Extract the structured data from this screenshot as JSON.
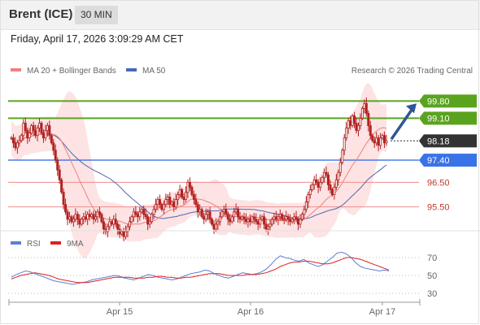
{
  "header": {
    "title": "Brent (ICE)",
    "timeframe": "30 MIN"
  },
  "timestamp": "Friday, April 17, 2026 3:09:29 AM CET",
  "credit": "Research © 2026 Trading Central",
  "colors": {
    "bollinger_fill": "#fde0e0",
    "ma20": "#f08080",
    "ma50": "#4a68b5",
    "resistance": "#5aa31f",
    "support": "#f08c8c",
    "pivot": "#3a72e8",
    "last_price": "#333333",
    "candle": "#b22222",
    "rsi": "#5b7fd6",
    "rsi_ma": "#dd2222",
    "arrow": "#2e5596"
  },
  "chart_data": [
    {
      "type": "candlestick",
      "title": "",
      "legend": [
        {
          "key": "ma20",
          "label": "MA 20 + Bollinger Bands"
        },
        {
          "key": "ma50",
          "label": "MA 50"
        }
      ],
      "legend_placement": "top-left",
      "x_ticks": [
        "Apr 15",
        "Apr 16",
        "Apr 17"
      ],
      "ylim": [
        94.5,
        100.8
      ],
      "price_levels": [
        {
          "label": "99.80",
          "value": 99.8,
          "kind": "resistance"
        },
        {
          "label": "99.10",
          "value": 99.1,
          "kind": "resistance"
        },
        {
          "label": "98.18",
          "value": 98.18,
          "kind": "last_price"
        },
        {
          "label": "97.40",
          "value": 97.4,
          "kind": "pivot"
        },
        {
          "label": "96.50",
          "value": 96.5,
          "kind": "support"
        },
        {
          "label": "95.50",
          "value": 95.5,
          "kind": "support"
        }
      ],
      "closes": [
        98.3,
        98.1,
        97.9,
        98.1,
        98.2,
        98.4,
        98.9,
        98.6,
        98.3,
        98.5,
        98.8,
        98.6,
        98.4,
        98.7,
        98.9,
        98.5,
        98.3,
        98.6,
        98.8,
        98.4,
        98.1,
        97.8,
        97.4,
        97.0,
        96.6,
        96.1,
        95.6,
        95.3,
        95.0,
        95.1,
        94.9,
        95.0,
        95.2,
        95.0,
        94.8,
        95.0,
        95.1,
        95.0,
        95.2,
        95.1,
        95.2,
        95.0,
        95.1,
        95.3,
        95.2,
        94.9,
        94.6,
        94.5,
        94.7,
        94.9,
        94.8,
        95.0,
        94.8,
        94.6,
        94.4,
        94.5,
        94.3,
        94.5,
        94.7,
        94.9,
        95.1,
        95.3,
        95.2,
        95.1,
        95.3,
        95.4,
        95.2,
        95.1,
        94.8,
        94.9,
        95.2,
        95.4,
        95.6,
        95.8,
        95.6,
        95.4,
        95.6,
        95.8,
        95.9,
        95.6,
        95.7,
        95.5,
        95.8,
        96.0,
        96.2,
        95.9,
        95.8,
        96.1,
        96.5,
        96.3,
        96.0,
        95.8,
        95.6,
        95.3,
        95.4,
        95.1,
        95.0,
        95.2,
        95.3,
        95.0,
        94.8,
        94.6,
        94.8,
        94.9,
        95.1,
        95.3,
        95.4,
        95.2,
        95.0,
        94.9,
        95.1,
        95.3,
        95.4,
        95.1,
        95.0,
        95.1,
        95.0,
        94.9,
        95.0,
        94.9,
        95.1,
        95.0,
        94.9,
        94.8,
        95.0,
        95.1,
        94.8,
        94.6,
        94.7,
        94.8,
        95.0,
        95.1,
        95.0,
        95.1,
        95.2,
        95.0,
        95.0,
        95.1,
        95.0,
        94.9,
        95.0,
        95.1,
        95.0,
        94.8,
        95.0,
        95.2,
        95.4,
        95.7,
        96.0,
        96.2,
        96.4,
        96.6,
        96.5,
        96.3,
        96.5,
        96.7,
        96.9,
        96.8,
        96.4,
        96.2,
        96.0,
        96.3,
        96.6,
        96.9,
        97.3,
        97.8,
        98.3,
        98.7,
        99.0,
        98.8,
        99.2,
        98.9,
        98.6,
        98.8,
        99.1,
        99.5,
        99.7,
        99.3,
        98.8,
        98.4,
        98.2,
        98.1,
        98.3,
        98.0,
        98.3,
        98.4,
        98.1,
        98.18
      ]
    },
    {
      "type": "line",
      "title": "",
      "legend": [
        {
          "key": "rsi",
          "label": "RSI"
        },
        {
          "key": "rsi_ma",
          "label": "9MA"
        }
      ],
      "ylim": [
        20,
        80
      ],
      "y_ticks": [
        "70",
        "50",
        "30"
      ],
      "x_ticks": [
        "Apr 15",
        "Apr 16",
        "Apr 17"
      ],
      "series": [
        {
          "name": "RSI",
          "values": [
            48,
            51,
            53,
            55,
            54,
            52,
            50,
            48,
            46,
            44,
            43,
            42,
            41,
            40,
            41,
            42,
            43,
            45,
            46,
            47,
            48,
            49,
            50,
            49,
            47,
            46,
            45,
            47,
            49,
            51,
            50,
            48,
            47,
            46,
            45,
            46,
            48,
            50,
            52,
            53,
            54,
            56,
            55,
            52,
            50,
            48,
            47,
            49,
            51,
            53,
            52,
            51,
            52,
            54,
            57,
            62,
            68,
            72,
            70,
            69,
            67,
            66,
            68,
            64,
            62,
            60,
            62,
            66,
            70,
            75,
            76,
            74,
            70,
            64,
            60,
            58,
            57,
            56,
            55,
            56,
            55
          ]
        },
        {
          "name": "9MA",
          "values": [
            46,
            48,
            50,
            51,
            52,
            53,
            52,
            51,
            50,
            48,
            46,
            45,
            44,
            43,
            42,
            42,
            42,
            43,
            44,
            45,
            46,
            47,
            48,
            48,
            48,
            48,
            47,
            47,
            47,
            48,
            48,
            49,
            49,
            48,
            48,
            47,
            47,
            48,
            48,
            49,
            50,
            51,
            52,
            52,
            52,
            51,
            50,
            50,
            50,
            50,
            51,
            51,
            51,
            52,
            53,
            55,
            57,
            60,
            62,
            64,
            65,
            65,
            66,
            66,
            65,
            64,
            63,
            63,
            64,
            66,
            68,
            70,
            70,
            69,
            68,
            66,
            64,
            62,
            60,
            58,
            56
          ]
        }
      ]
    }
  ]
}
